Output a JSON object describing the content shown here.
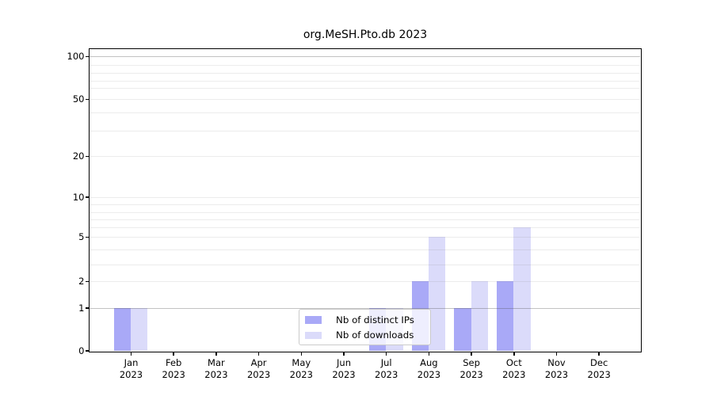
{
  "chart_data": {
    "type": "bar",
    "title": "org.MeSH.Pto.db 2023",
    "categories": [
      "Jan",
      "Feb",
      "Mar",
      "Apr",
      "May",
      "Jun",
      "Jul",
      "Aug",
      "Sep",
      "Oct",
      "Nov",
      "Dec"
    ],
    "year_label": "2023",
    "series": [
      {
        "name": "Nb of distinct IPs",
        "color": "#a9a9f7",
        "values": [
          1,
          0,
          0,
          0,
          0,
          0,
          1,
          2,
          1,
          2,
          0,
          0
        ]
      },
      {
        "name": "Nb of downloads",
        "color": "#dbdbfa",
        "values": [
          1,
          0,
          0,
          0,
          0,
          0,
          1,
          5,
          2,
          6,
          0,
          0
        ]
      }
    ],
    "y_axis": {
      "scale": "log-like",
      "ylim": [
        0,
        100
      ],
      "ticks": [
        {
          "label": "100",
          "value": 100
        },
        {
          "label": "50",
          "value": 50
        },
        {
          "label": "20",
          "value": 20
        },
        {
          "label": "10",
          "value": 10
        },
        {
          "label": "5",
          "value": 5
        },
        {
          "label": "2",
          "value": 2
        },
        {
          "label": "1",
          "value": 1
        },
        {
          "label": "0",
          "value": 0
        }
      ]
    },
    "legend": {
      "position": "lower-center-inside"
    },
    "grid": "horizontal-on"
  }
}
